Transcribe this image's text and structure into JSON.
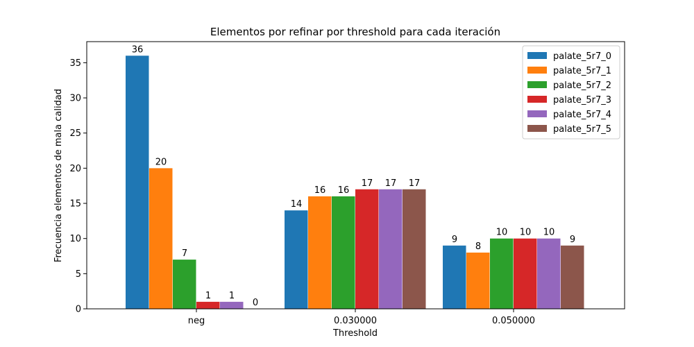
{
  "chart_data": {
    "type": "bar",
    "title": "Elementos por refinar por threshold para cada iteración",
    "xlabel": "Threshold",
    "ylabel": "Frecuencia elementos de mala calidad",
    "categories": [
      "neg",
      "0.030000",
      "0.050000"
    ],
    "ylim": [
      0,
      38
    ],
    "yticks": [
      0,
      5,
      10,
      15,
      20,
      25,
      30,
      35
    ],
    "grid": false,
    "legend_position": "top-right",
    "series": [
      {
        "name": "palate_5r7_0",
        "color": "#1f77b4",
        "values": [
          36,
          14,
          9
        ]
      },
      {
        "name": "palate_5r7_1",
        "color": "#ff7f0e",
        "values": [
          20,
          16,
          8
        ]
      },
      {
        "name": "palate_5r7_2",
        "color": "#2ca02c",
        "values": [
          7,
          16,
          10
        ]
      },
      {
        "name": "palate_5r7_3",
        "color": "#d62728",
        "values": [
          1,
          17,
          10
        ]
      },
      {
        "name": "palate_5r7_4",
        "color": "#9467bd",
        "values": [
          1,
          17,
          10
        ]
      },
      {
        "name": "palate_5r7_5",
        "color": "#8c564b",
        "values": [
          0,
          17,
          9
        ]
      }
    ]
  }
}
